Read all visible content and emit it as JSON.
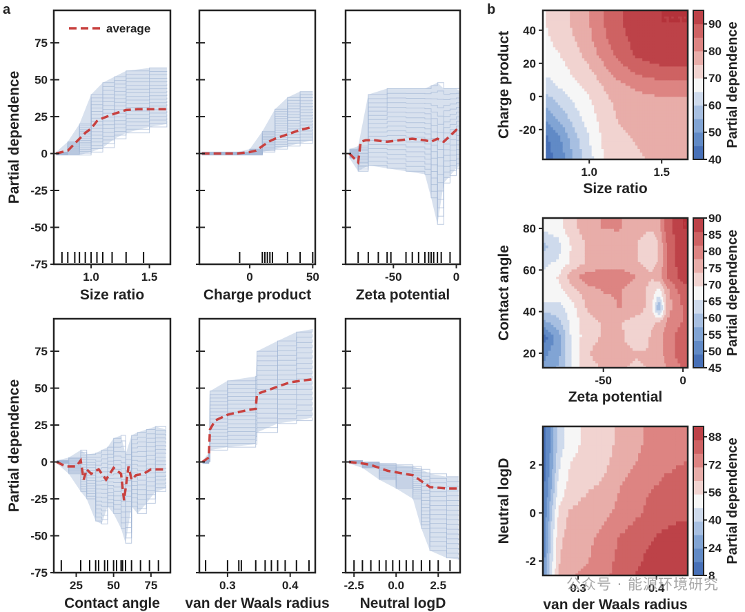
{
  "figure": {
    "panel_a_label": "a",
    "panel_b_label": "b",
    "watermark": "公众号 · 能源环境研究"
  },
  "chart_data": [
    {
      "type": "line",
      "panel": "a",
      "xlabel": "Size ratio",
      "ylabel": "Partial dependence",
      "xlim": [
        0.68,
        1.68
      ],
      "ylim": [
        -75,
        97
      ],
      "xticks": [
        1.0,
        1.5
      ],
      "yticks": [
        -75,
        -50,
        -25,
        0,
        25,
        50,
        75
      ],
      "legend": {
        "entries": [
          "average"
        ],
        "placement": "upper left"
      },
      "series": [
        {
          "name": "average",
          "x": [
            0.7,
            0.8,
            0.85,
            0.9,
            0.95,
            1.0,
            1.05,
            1.1,
            1.2,
            1.3,
            1.4,
            1.5,
            1.65
          ],
          "y": [
            0,
            2,
            6,
            10,
            14,
            17,
            22,
            24,
            27,
            29.5,
            30,
            30,
            30
          ]
        }
      ],
      "ice_band": {
        "x": [
          0.7,
          0.8,
          0.9,
          1.0,
          1.1,
          1.2,
          1.3,
          1.5,
          1.65
        ],
        "lower": [
          -1,
          -1,
          -1,
          1,
          4,
          10,
          14,
          18,
          20
        ],
        "upper": [
          1,
          8,
          20,
          40,
          48,
          52,
          56,
          58,
          58
        ]
      },
      "rug": [
        0.75,
        0.8,
        0.86,
        0.9,
        0.95,
        1.0,
        1.05,
        1.1,
        1.18,
        1.3,
        1.45
      ]
    },
    {
      "type": "line",
      "panel": "a",
      "xlabel": "Charge product",
      "xlim": [
        -40,
        52
      ],
      "ylim": [
        -75,
        97
      ],
      "xticks": [
        0,
        50
      ],
      "yticks": [
        -75,
        -50,
        -25,
        0,
        25,
        50,
        75
      ],
      "series": [
        {
          "name": "average",
          "x": [
            -38,
            -20,
            -10,
            0,
            5,
            10,
            15,
            20,
            30,
            40,
            50
          ],
          "y": [
            0,
            0,
            0,
            1,
            2,
            5,
            8,
            10,
            13,
            16,
            18
          ]
        }
      ],
      "ice_band": {
        "x": [
          -38,
          -10,
          0,
          10,
          20,
          30,
          40,
          50
        ],
        "lower": [
          -1,
          -1,
          -1,
          1,
          3,
          5,
          7,
          9
        ],
        "upper": [
          1,
          1,
          3,
          15,
          30,
          38,
          42,
          42
        ]
      },
      "rug": [
        -8,
        10,
        12,
        14,
        16,
        18,
        30,
        40,
        50
      ]
    },
    {
      "type": "line",
      "panel": "a",
      "xlabel": "Zeta potential",
      "xlim": [
        -88,
        3
      ],
      "ylim": [
        -75,
        97
      ],
      "xticks": [
        -50,
        0
      ],
      "yticks": [
        -75,
        -50,
        -25,
        0,
        25,
        50,
        75
      ],
      "series": [
        {
          "name": "average",
          "x": [
            -85,
            -78,
            -76,
            -72,
            -65,
            -55,
            -45,
            -35,
            -25,
            -20,
            -15,
            -10,
            -5,
            0,
            3
          ],
          "y": [
            0,
            -6,
            8,
            9,
            9,
            8,
            9,
            10,
            9,
            8,
            10,
            8,
            12,
            16,
            15
          ]
        }
      ],
      "ice_band": {
        "x": [
          -85,
          -78,
          -70,
          -55,
          -40,
          -25,
          -20,
          -15,
          -10,
          -5,
          0,
          3
        ],
        "lower": [
          -3,
          -12,
          -8,
          -10,
          -12,
          -14,
          -30,
          -48,
          -20,
          -15,
          -10,
          -8
        ],
        "upper": [
          3,
          5,
          40,
          44,
          44,
          44,
          46,
          48,
          44,
          44,
          44,
          42
        ]
      },
      "rug": [
        -78,
        -70,
        -62,
        -55,
        -52,
        -40,
        -35,
        -30,
        -25,
        -22,
        -20,
        -18,
        -15,
        -12,
        -5
      ]
    },
    {
      "type": "line",
      "panel": "a",
      "xlabel": "Contact angle",
      "ylabel": "Partial dependence",
      "xlim": [
        10,
        88
      ],
      "ylim": [
        -75,
        97
      ],
      "xticks": [
        25,
        50,
        75
      ],
      "yticks": [
        -75,
        -50,
        -25,
        0,
        25,
        50,
        75
      ],
      "series": [
        {
          "name": "average",
          "x": [
            12,
            18,
            25,
            28,
            30,
            32,
            35,
            40,
            45,
            50,
            55,
            57,
            60,
            62,
            65,
            70,
            75,
            80,
            85
          ],
          "y": [
            0,
            -3,
            -3,
            1,
            -12,
            -5,
            -8,
            -5,
            -12,
            -4,
            -8,
            -26,
            -3,
            -12,
            -9,
            -8,
            -5,
            -5,
            -5
          ]
        }
      ],
      "ice_band": {
        "x": [
          12,
          20,
          28,
          32,
          38,
          42,
          46,
          50,
          55,
          58,
          62,
          66,
          72,
          78,
          85
        ],
        "lower": [
          -1,
          -8,
          -20,
          -25,
          -40,
          -42,
          -30,
          -35,
          -45,
          -55,
          -30,
          -35,
          -28,
          -20,
          -18
        ],
        "upper": [
          1,
          3,
          8,
          5,
          6,
          8,
          10,
          16,
          18,
          5,
          18,
          20,
          22,
          24,
          22
        ]
      },
      "rug": [
        15,
        28,
        34,
        38,
        40,
        44,
        46,
        50,
        52,
        55,
        56,
        58,
        62,
        68,
        74,
        80
      ]
    },
    {
      "type": "line",
      "panel": "a",
      "xlabel": "van der Waals radius",
      "xlim": [
        0.255,
        0.44
      ],
      "ylim": [
        -75,
        97
      ],
      "xticks": [
        0.3,
        0.4
      ],
      "yticks": [
        -75,
        -50,
        -25,
        0,
        25,
        50,
        75
      ],
      "series": [
        {
          "name": "average",
          "x": [
            0.26,
            0.27,
            0.272,
            0.28,
            0.3,
            0.33,
            0.345,
            0.347,
            0.36,
            0.38,
            0.4,
            0.435
          ],
          "y": [
            0,
            3,
            22,
            28,
            32,
            35,
            36,
            46,
            48,
            51,
            54,
            56
          ]
        }
      ],
      "ice_band": {
        "x": [
          0.26,
          0.27,
          0.272,
          0.3,
          0.345,
          0.347,
          0.38,
          0.41,
          0.435
        ],
        "lower": [
          -1,
          0,
          8,
          10,
          12,
          20,
          26,
          28,
          30
        ],
        "upper": [
          1,
          6,
          48,
          55,
          58,
          75,
          82,
          88,
          90
        ]
      },
      "rug": [
        0.265,
        0.3,
        0.318,
        0.322,
        0.345,
        0.36,
        0.37,
        0.38,
        0.392,
        0.41,
        0.43
      ]
    },
    {
      "type": "line",
      "panel": "a",
      "xlabel": "Neutral logD",
      "xlim": [
        -3.0,
        3.8
      ],
      "ylim": [
        -75,
        97
      ],
      "xticks": [
        -2.5,
        0.0,
        2.5
      ],
      "yticks": [
        -75,
        -50,
        -25,
        0,
        25,
        50,
        75
      ],
      "series": [
        {
          "name": "average",
          "x": [
            -2.8,
            -2.0,
            -1.5,
            -1.0,
            -0.5,
            0.0,
            0.5,
            1.0,
            1.5,
            2.0,
            3.0,
            3.7
          ],
          "y": [
            0,
            -1,
            -2,
            -4,
            -6,
            -7,
            -8,
            -9,
            -13,
            -17,
            -18,
            -18
          ]
        }
      ],
      "ice_band": {
        "x": [
          -2.8,
          -2.0,
          -1.0,
          0.0,
          1.0,
          1.5,
          2.0,
          3.0,
          3.7
        ],
        "lower": [
          -1,
          -4,
          -12,
          -18,
          -25,
          -45,
          -60,
          -65,
          -66
        ],
        "upper": [
          1,
          0,
          -1,
          -2,
          -3,
          -5,
          -8,
          -10,
          -10
        ]
      },
      "rug": [
        -2.5,
        -2.0,
        -1.5,
        -1.0,
        -0.6,
        -0.2,
        0.2,
        0.6,
        1.0,
        1.5,
        2.0,
        2.5,
        3.2
      ]
    },
    {
      "type": "heatmap",
      "panel": "b",
      "xlabel": "Size ratio",
      "ylabel": "Charge product",
      "colorbar_label": "Partial dependence",
      "xlim": [
        0.68,
        1.68
      ],
      "ylim": [
        -38,
        52
      ],
      "xticks": [
        1.0,
        1.5
      ],
      "yticks": [
        -20,
        0,
        20,
        40
      ],
      "colorbar_ticks": [
        40,
        50,
        60,
        70,
        80,
        90
      ],
      "colorbar_range": [
        40,
        95
      ],
      "x": [
        0.7,
        0.8,
        0.9,
        1.0,
        1.1,
        1.2,
        1.3,
        1.4,
        1.5,
        1.6,
        1.68
      ],
      "y": [
        -38,
        -25,
        -15,
        -5,
        5,
        15,
        25,
        35,
        45,
        52
      ],
      "z": [
        [
          42,
          47,
          56,
          63,
          70,
          73,
          74,
          75,
          76,
          76,
          76
        ],
        [
          44,
          50,
          58,
          65,
          71,
          74,
          75,
          76,
          77,
          77,
          77
        ],
        [
          50,
          55,
          62,
          67,
          72,
          75,
          76,
          77,
          77,
          77,
          77
        ],
        [
          56,
          60,
          65,
          69,
          73,
          76,
          77,
          78,
          78,
          78,
          78
        ],
        [
          62,
          65,
          68,
          71,
          75,
          78,
          80,
          81,
          82,
          82,
          82
        ],
        [
          66,
          68,
          71,
          74,
          78,
          82,
          85,
          87,
          88,
          88,
          88
        ],
        [
          68,
          70,
          73,
          77,
          82,
          86,
          90,
          92,
          93,
          93,
          93
        ],
        [
          69,
          72,
          75,
          79,
          84,
          88,
          91,
          93,
          94,
          94,
          94
        ],
        [
          70,
          73,
          76,
          80,
          85,
          89,
          92,
          94,
          95,
          95,
          95
        ],
        [
          70,
          73,
          76,
          80,
          85,
          89,
          92,
          94,
          95,
          95,
          95
        ]
      ]
    },
    {
      "type": "heatmap",
      "panel": "b",
      "xlabel": "Zeta potential",
      "ylabel": "Contact angle",
      "colorbar_label": "Partial dependence",
      "xlim": [
        -88,
        3
      ],
      "ylim": [
        13,
        85
      ],
      "xticks": [
        -50,
        0
      ],
      "yticks": [
        20,
        40,
        60,
        80
      ],
      "colorbar_ticks": [
        45,
        50,
        55,
        60,
        65,
        70,
        75,
        80,
        85,
        90
      ],
      "colorbar_range": [
        45,
        90
      ],
      "x": [
        -88,
        -78,
        -70,
        -60,
        -50,
        -40,
        -30,
        -20,
        -15,
        -10,
        0,
        3
      ],
      "y": [
        13,
        20,
        28,
        35,
        42,
        50,
        57,
        64,
        72,
        80,
        85
      ],
      "z": [
        [
          54,
          58,
          66,
          72,
          74,
          74,
          73,
          74,
          74,
          78,
          82,
          82
        ],
        [
          52,
          56,
          66,
          73,
          76,
          76,
          74,
          74,
          75,
          80,
          84,
          84
        ],
        [
          46,
          56,
          66,
          72,
          74,
          75,
          70,
          74,
          76,
          80,
          84,
          84
        ],
        [
          56,
          60,
          67,
          72,
          74,
          74,
          72,
          73,
          74,
          78,
          82,
          82
        ],
        [
          64,
          64,
          68,
          74,
          76,
          78,
          76,
          72,
          56,
          76,
          82,
          82
        ],
        [
          68,
          68,
          72,
          76,
          78,
          78,
          76,
          72,
          68,
          76,
          84,
          84
        ],
        [
          67,
          70,
          76,
          80,
          80,
          80,
          78,
          74,
          76,
          82,
          88,
          88
        ],
        [
          64,
          66,
          70,
          74,
          75,
          76,
          74,
          72,
          74,
          82,
          89,
          89
        ],
        [
          60,
          64,
          70,
          74,
          74,
          75,
          74,
          70,
          74,
          82,
          89,
          89
        ],
        [
          66,
          68,
          72,
          76,
          78,
          78,
          76,
          74,
          76,
          84,
          90,
          90
        ],
        [
          66,
          68,
          72,
          76,
          78,
          78,
          76,
          74,
          76,
          84,
          90,
          90
        ]
      ]
    },
    {
      "type": "heatmap",
      "panel": "b",
      "xlabel": "van der Waals radius",
      "ylabel": "Neutral logD",
      "colorbar_label": "Partial dependence",
      "xlim": [
        0.255,
        0.44
      ],
      "ylim": [
        -2.6,
        3.6
      ],
      "xticks": [
        0.3,
        0.4
      ],
      "yticks": [
        -2,
        0,
        2
      ],
      "colorbar_ticks": [
        8,
        24,
        40,
        56,
        72,
        88
      ],
      "colorbar_range": [
        8,
        94
      ],
      "x": [
        0.255,
        0.265,
        0.275,
        0.29,
        0.31,
        0.33,
        0.35,
        0.37,
        0.39,
        0.41,
        0.44
      ],
      "y": [
        -2.6,
        -2.0,
        -1.0,
        0.0,
        1.0,
        2.0,
        3.0,
        3.6
      ],
      "z": [
        [
          20,
          45,
          64,
          70,
          72,
          74,
          82,
          86,
          90,
          92,
          93
        ],
        [
          18,
          42,
          62,
          68,
          70,
          73,
          80,
          84,
          88,
          90,
          92
        ],
        [
          16,
          40,
          60,
          67,
          69,
          72,
          78,
          82,
          85,
          88,
          90
        ],
        [
          14,
          36,
          56,
          64,
          66,
          68,
          72,
          76,
          80,
          83,
          85
        ],
        [
          12,
          30,
          50,
          58,
          62,
          64,
          70,
          74,
          78,
          80,
          82
        ],
        [
          10,
          26,
          46,
          55,
          58,
          60,
          66,
          70,
          74,
          77,
          79
        ],
        [
          10,
          24,
          42,
          52,
          56,
          58,
          64,
          68,
          72,
          74,
          76
        ],
        [
          10,
          24,
          42,
          52,
          56,
          58,
          64,
          68,
          72,
          74,
          76
        ]
      ]
    }
  ]
}
